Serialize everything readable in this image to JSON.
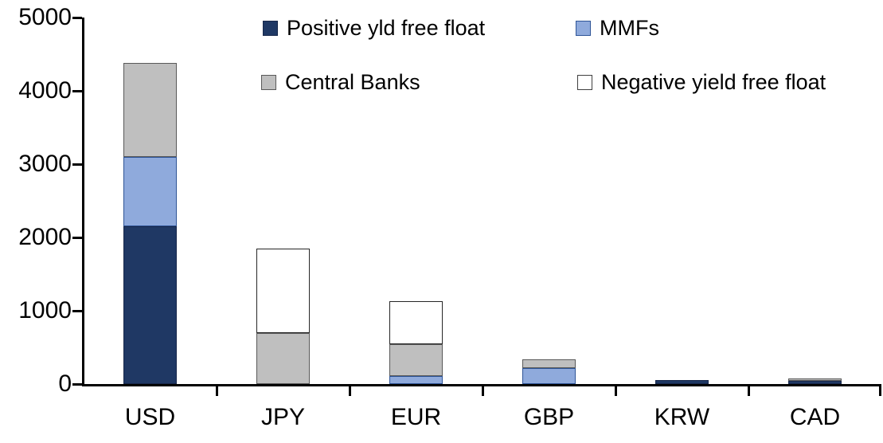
{
  "chart_data": {
    "type": "bar",
    "stacked": true,
    "title": "",
    "xlabel": "",
    "ylabel": "",
    "categories": [
      "USD",
      "JPY",
      "EUR",
      "GBP",
      "KRW",
      "CAD"
    ],
    "series": [
      {
        "name": "Positive yld free float",
        "color": "#1F3864",
        "border": "#17274A",
        "values": [
          2150,
          0,
          0,
          0,
          50,
          45
        ]
      },
      {
        "name": "MMFs",
        "color": "#8FAADC",
        "border": "#2F5597",
        "values": [
          950,
          0,
          110,
          220,
          0,
          0
        ]
      },
      {
        "name": "Central Banks",
        "color": "#BFBFBF",
        "border": "#595959",
        "values": [
          1280,
          700,
          430,
          115,
          0,
          35
        ]
      },
      {
        "name": "Negative yield free float",
        "color": "#FFFFFF",
        "border": "#262626",
        "values": [
          0,
          1150,
          590,
          0,
          0,
          0
        ]
      }
    ],
    "totals": [
      4380,
      1850,
      1130,
      335,
      50,
      80
    ],
    "ylim": [
      0,
      5000
    ],
    "ytick_interval": 1000,
    "ytick_labels": [
      "0",
      "1000",
      "2000",
      "3000",
      "4000",
      "5000"
    ],
    "grid": false,
    "legend_position": "top",
    "axis_color": "#000000",
    "background_color": "#FFFFFF"
  }
}
